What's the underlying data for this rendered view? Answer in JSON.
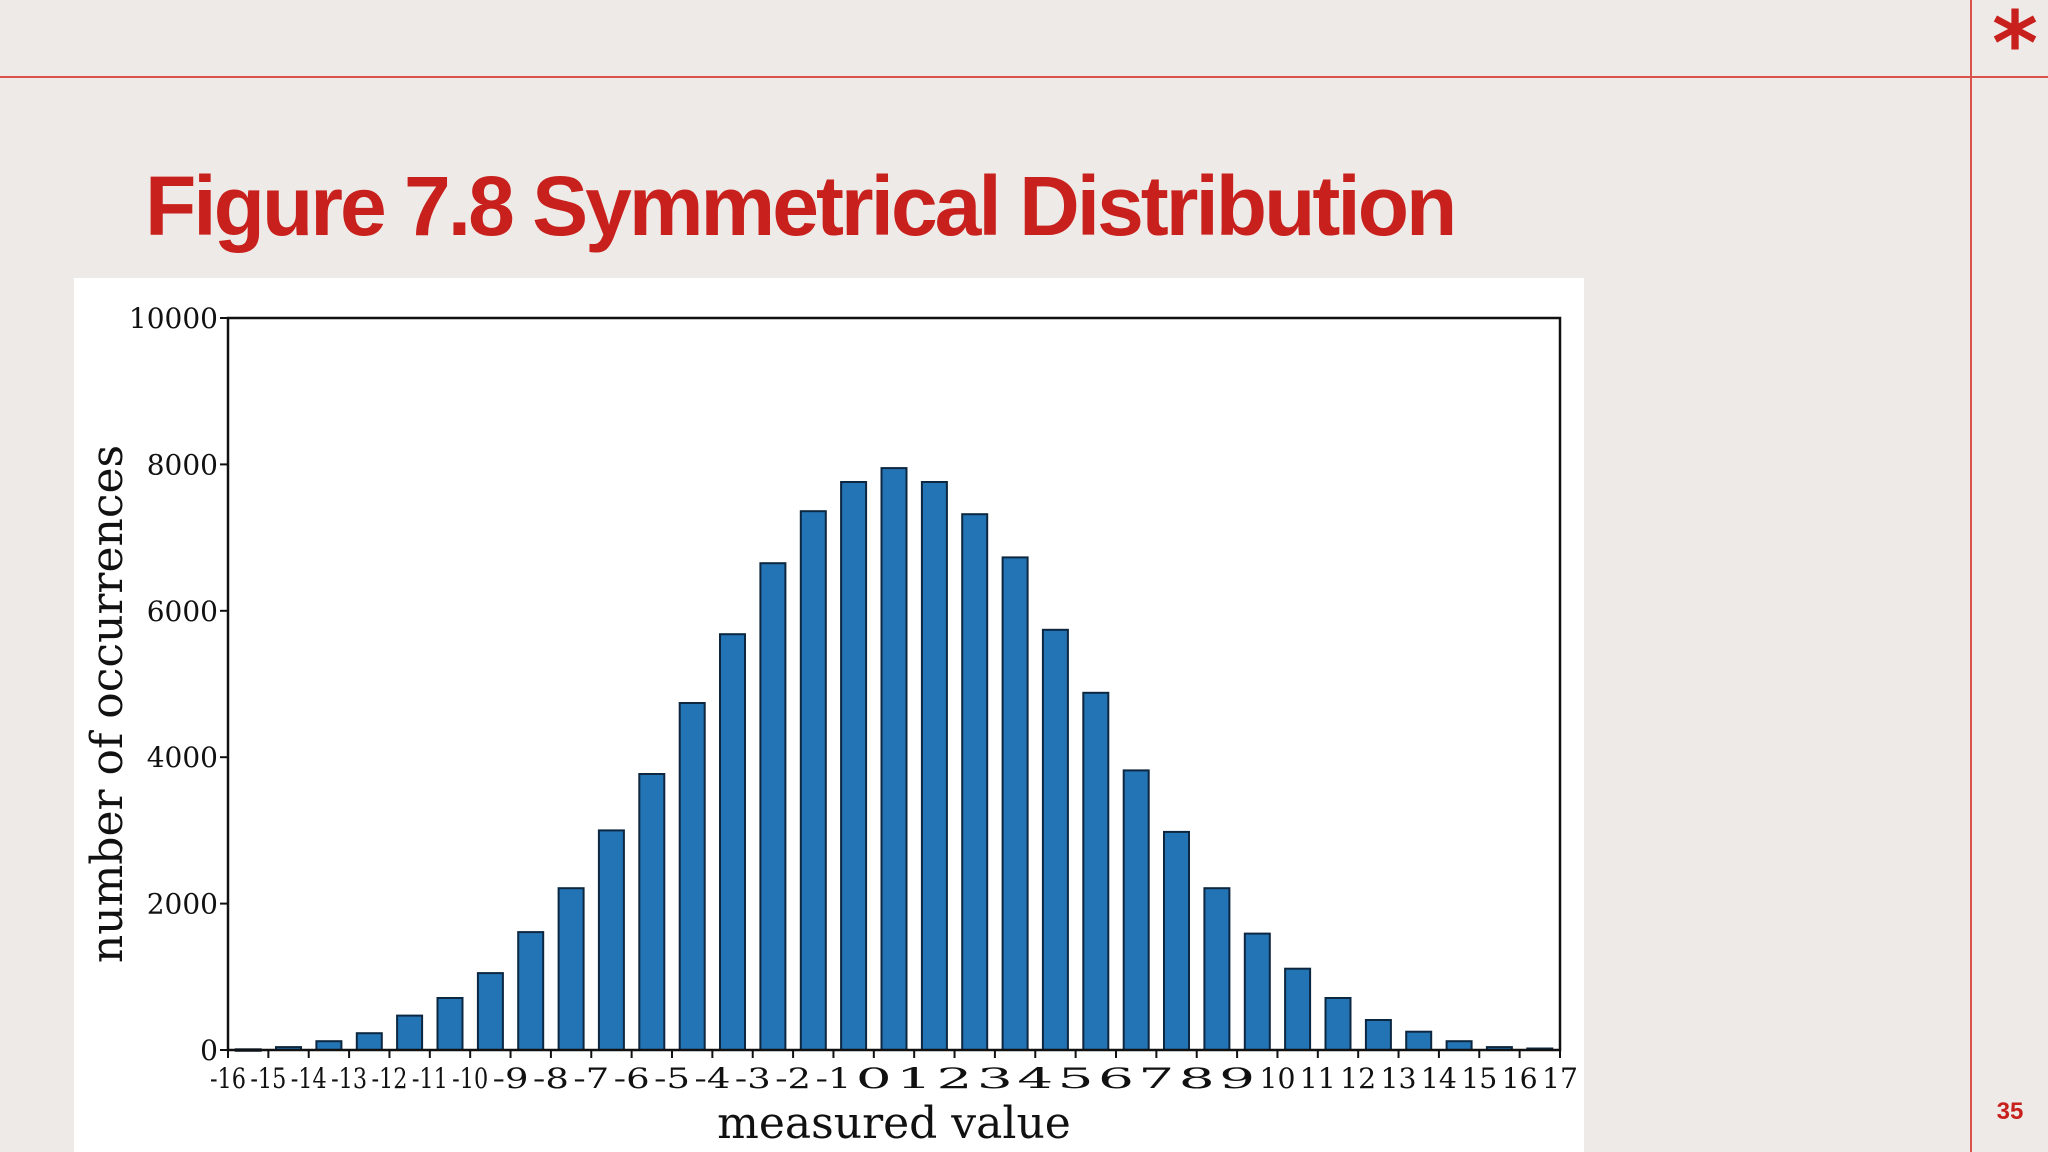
{
  "slide": {
    "title": "Figure 7.8 Symmetrical Distribution",
    "page_number": "35",
    "corner_mark": "*",
    "accent_color": "#c8201c",
    "rule_color": "#d9534a",
    "background_color": "#eeeae7"
  },
  "chart_data": {
    "type": "bar",
    "xlabel": "measured value",
    "ylabel": "number of occurrences",
    "ylim": [
      0,
      10000
    ],
    "xlim": [
      -16,
      17
    ],
    "yticks": [
      0,
      2000,
      4000,
      6000,
      8000,
      10000
    ],
    "xticks": [
      -16,
      -15,
      -14,
      -13,
      -12,
      -11,
      -10,
      -9,
      -8,
      -7,
      -6,
      -5,
      -4,
      -3,
      -2,
      -1,
      0,
      1,
      2,
      3,
      4,
      5,
      6,
      7,
      8,
      9,
      10,
      11,
      12,
      13,
      14,
      15,
      16,
      17
    ],
    "categories": [
      -16,
      -15,
      -14,
      -13,
      -12,
      -11,
      -10,
      -9,
      -8,
      -7,
      -6,
      -5,
      -4,
      -3,
      -2,
      -1,
      0,
      1,
      2,
      3,
      4,
      5,
      6,
      7,
      8,
      9,
      10,
      11,
      12,
      13,
      14,
      15,
      16
    ],
    "values": [
      10,
      40,
      120,
      230,
      470,
      710,
      1050,
      1610,
      2210,
      3000,
      3770,
      4740,
      5680,
      6650,
      7360,
      7760,
      7950,
      7760,
      7320,
      6730,
      5740,
      4880,
      3820,
      2980,
      2210,
      1590,
      1110,
      710,
      410,
      250,
      120,
      40,
      20
    ],
    "bar_color": "#2274b5",
    "grid": false,
    "legend": "none"
  }
}
